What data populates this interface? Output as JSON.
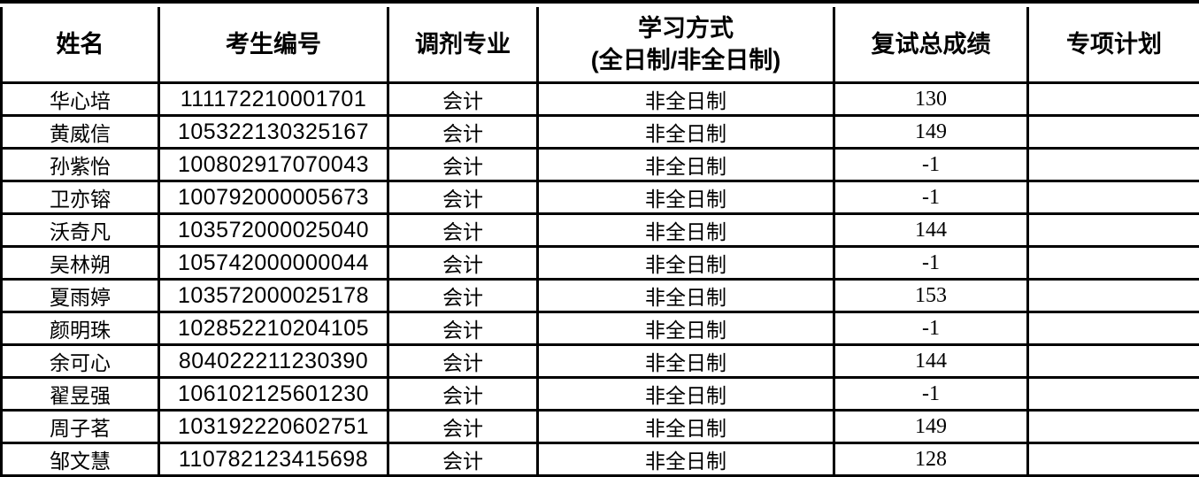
{
  "colors": {
    "border": "#000000",
    "text": "#000000",
    "background": "#ffffff"
  },
  "table": {
    "columns": [
      {
        "key": "name",
        "label": "姓名"
      },
      {
        "key": "candidate_id",
        "label": "考生编号"
      },
      {
        "key": "major",
        "label": "调剂专业"
      },
      {
        "key": "study_mode",
        "label": "学习方式",
        "label_line2": "(全日制/非全日制)"
      },
      {
        "key": "score",
        "label": "复试总成绩"
      },
      {
        "key": "special_plan",
        "label": "专项计划"
      }
    ],
    "rows": [
      {
        "name": "华心培",
        "candidate_id": "111172210001701",
        "major": "会计",
        "study_mode": "非全日制",
        "score": "130",
        "special_plan": ""
      },
      {
        "name": "黄威信",
        "candidate_id": "105322130325167",
        "major": "会计",
        "study_mode": "非全日制",
        "score": "149",
        "special_plan": ""
      },
      {
        "name": "孙紫怡",
        "candidate_id": "100802917070043",
        "major": "会计",
        "study_mode": "非全日制",
        "score": "-1",
        "special_plan": ""
      },
      {
        "name": "卫亦镕",
        "candidate_id": "100792000005673",
        "major": "会计",
        "study_mode": "非全日制",
        "score": "-1",
        "special_plan": ""
      },
      {
        "name": "沃奇凡",
        "candidate_id": "103572000025040",
        "major": "会计",
        "study_mode": "非全日制",
        "score": "144",
        "special_plan": ""
      },
      {
        "name": "吴林朔",
        "candidate_id": "105742000000044",
        "major": "会计",
        "study_mode": "非全日制",
        "score": "-1",
        "special_plan": ""
      },
      {
        "name": "夏雨婷",
        "candidate_id": "103572000025178",
        "major": "会计",
        "study_mode": "非全日制",
        "score": "153",
        "special_plan": ""
      },
      {
        "name": "颜明珠",
        "candidate_id": "102852210204105",
        "major": "会计",
        "study_mode": "非全日制",
        "score": "-1",
        "special_plan": ""
      },
      {
        "name": "余可心",
        "candidate_id": "804022211230390",
        "major": "会计",
        "study_mode": "非全日制",
        "score": "144",
        "special_plan": ""
      },
      {
        "name": "翟昱强",
        "candidate_id": "106102125601230",
        "major": "会计",
        "study_mode": "非全日制",
        "score": "-1",
        "special_plan": ""
      },
      {
        "name": "周子茗",
        "candidate_id": "103192220602751",
        "major": "会计",
        "study_mode": "非全日制",
        "score": "149",
        "special_plan": ""
      },
      {
        "name": "邹文慧",
        "candidate_id": "110782123415698",
        "major": "会计",
        "study_mode": "非全日制",
        "score": "128",
        "special_plan": ""
      }
    ]
  }
}
